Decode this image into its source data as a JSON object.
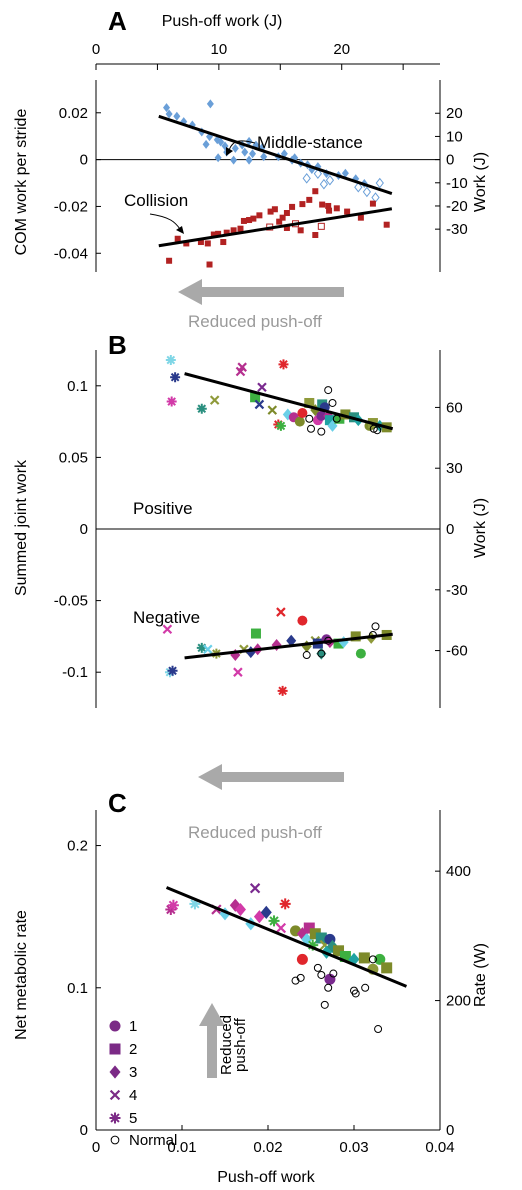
{
  "chart_data": [
    {
      "panel": "A",
      "type": "scatter",
      "xlabel_top": "Push-off work (J)",
      "ylabel": "COM work per stride",
      "ylabel_right": "Work (J)",
      "xlim": [
        0,
        0.04
      ],
      "ylim": [
        -0.048,
        0.034
      ],
      "xticks": [],
      "top_ticks": [
        "0",
        "10",
        "20"
      ],
      "yticks": [
        "0.02",
        "0",
        "-0.02",
        "-0.04"
      ],
      "right_ticks": [
        "20",
        "10",
        "0",
        "-10",
        "-20",
        "-30"
      ],
      "annotations": [
        "Middle-stance",
        "Collision"
      ],
      "arrow_text": "Reduced push-off",
      "series": [
        {
          "name": "Middle-stance",
          "marker": "diamond",
          "color": "#6a9fd8",
          "fit": [
            [
              0.0073,
              0.0185
            ],
            [
              0.0344,
              -0.0145
            ]
          ],
          "points": [
            [
              0.0082,
              0.0222
            ],
            [
              0.0085,
              0.0195
            ],
            [
              0.0094,
              0.0185
            ],
            [
              0.0102,
              0.0162
            ],
            [
              0.0112,
              0.0148
            ],
            [
              0.0123,
              0.0118
            ],
            [
              0.0132,
              0.0098
            ],
            [
              0.0141,
              0.0085
            ],
            [
              0.0128,
              0.0065
            ],
            [
              0.0133,
              0.0238
            ],
            [
              0.0145,
              0.0075
            ],
            [
              0.015,
              0.0058
            ],
            [
              0.0152,
              0.0032
            ],
            [
              0.0162,
              0.0048
            ],
            [
              0.017,
              0.0062
            ],
            [
              0.0178,
              0.0078
            ],
            [
              0.0186,
              0.0062
            ],
            [
              0.0193,
              0.005
            ],
            [
              0.0173,
              0.0032
            ],
            [
              0.0182,
              0.0025
            ],
            [
              0.0142,
              0.0008
            ],
            [
              0.016,
              -0.0002
            ],
            [
              0.0178,
              -0.0002
            ],
            [
              0.0195,
              0.0012
            ],
            [
              0.0212,
              0.0012
            ],
            [
              0.0219,
              0.0025
            ],
            [
              0.0228,
              -0.0002
            ],
            [
              0.0231,
              0.0008
            ],
            [
              0.0238,
              -0.0015
            ],
            [
              0.0246,
              -0.0022
            ],
            [
              0.0251,
              -0.0042
            ],
            [
              0.0258,
              -0.003
            ],
            [
              0.0268,
              -0.006
            ],
            [
              0.0282,
              -0.0068
            ],
            [
              0.029,
              -0.0058
            ],
            [
              0.0302,
              -0.0082
            ],
            [
              0.0312,
              -0.0102
            ],
            [
              0.033,
              -0.01
            ],
            [
              0.0258,
              -0.006
            ],
            [
              0.0245,
              -0.008
            ],
            [
              0.0265,
              -0.0105
            ],
            [
              0.0272,
              -0.0088
            ],
            [
              0.0305,
              -0.0118
            ],
            [
              0.0315,
              -0.0138
            ],
            [
              0.0325,
              -0.0162
            ]
          ]
        },
        {
          "name": "Collision",
          "marker": "square",
          "color": "#b22222",
          "fit": [
            [
              0.0073,
              -0.0368
            ],
            [
              0.0344,
              -0.021
            ]
          ],
          "points": [
            [
              0.0085,
              -0.0432
            ],
            [
              0.0095,
              -0.0338
            ],
            [
              0.0105,
              -0.0358
            ],
            [
              0.0122,
              -0.0352
            ],
            [
              0.013,
              -0.0358
            ],
            [
              0.0137,
              -0.032
            ],
            [
              0.0142,
              -0.0317
            ],
            [
              0.0152,
              -0.0312
            ],
            [
              0.016,
              -0.0302
            ],
            [
              0.0168,
              -0.0295
            ],
            [
              0.0172,
              -0.0262
            ],
            [
              0.0178,
              -0.0258
            ],
            [
              0.0183,
              -0.0252
            ],
            [
              0.019,
              -0.0238
            ],
            [
              0.0203,
              -0.0222
            ],
            [
              0.0208,
              -0.0212
            ],
            [
              0.0217,
              -0.0248
            ],
            [
              0.0222,
              -0.0228
            ],
            [
              0.0228,
              -0.0202
            ],
            [
              0.024,
              -0.019
            ],
            [
              0.0248,
              -0.0172
            ],
            [
              0.0255,
              -0.0135
            ],
            [
              0.0263,
              -0.0192
            ],
            [
              0.0271,
              -0.0218
            ],
            [
              0.028,
              -0.0208
            ],
            [
              0.0292,
              -0.0222
            ],
            [
              0.0308,
              -0.0248
            ],
            [
              0.0322,
              -0.0188
            ],
            [
              0.0338,
              -0.0278
            ],
            [
              0.0132,
              -0.0448
            ],
            [
              0.0202,
              -0.0288
            ],
            [
              0.0213,
              -0.0265
            ],
            [
              0.0222,
              -0.0292
            ],
            [
              0.0232,
              -0.0274
            ],
            [
              0.0238,
              -0.0302
            ],
            [
              0.0255,
              -0.0322
            ],
            [
              0.0262,
              -0.0285
            ],
            [
              0.027,
              -0.0198
            ],
            [
              0.0148,
              -0.0352
            ]
          ]
        }
      ]
    },
    {
      "panel": "B",
      "type": "scatter",
      "ylabel": "Summed joint work",
      "ylabel_right": "Work (J)",
      "xlim": [
        0,
        0.04
      ],
      "ylim": [
        -0.125,
        0.125
      ],
      "yticks": [
        "0.1",
        "0.05",
        "0",
        "-0.05",
        "-0.1"
      ],
      "right_ticks": [
        "60",
        "30",
        "0",
        "-30",
        "-60"
      ],
      "annotations": [
        "Positive",
        "Negative"
      ],
      "arrow_text": "Reduced push-off",
      "fits": [
        [
          [
            0.0103,
            0.1085
          ],
          [
            0.0345,
            0.07
          ]
        ],
        [
          [
            0.0103,
            -0.09
          ],
          [
            0.0345,
            -0.0735
          ]
        ]
      ]
    },
    {
      "panel": "C",
      "type": "scatter",
      "xlabel": "Push-off work",
      "ylabel": "Net metabolic rate",
      "ylabel_right": "Rate (W)",
      "xlim": [
        0,
        0.04
      ],
      "ylim": [
        0,
        0.225
      ],
      "xticks": [
        "0",
        "0.01",
        "0.02",
        "0.03",
        "0.04"
      ],
      "yticks": [
        "0.2",
        "0.1",
        "0"
      ],
      "right_ticks": [
        "400",
        "200",
        "0"
      ],
      "arrow_text": "Reduced push-off",
      "fit": [
        [
          0.0082,
          0.1705
        ],
        [
          0.0361,
          0.101
        ]
      ],
      "legend": [
        {
          "label": "1",
          "marker": "circle",
          "color": "#7b2a86"
        },
        {
          "label": "2",
          "marker": "square",
          "color": "#7b2a86"
        },
        {
          "label": "3",
          "marker": "diamond",
          "color": "#7b2a86"
        },
        {
          "label": "4",
          "marker": "x",
          "color": "#7b2a86"
        },
        {
          "label": "5",
          "marker": "star",
          "color": "#7b2a86"
        },
        {
          "label": "Normal",
          "marker": "open-circle",
          "color": "#000000"
        }
      ]
    }
  ],
  "subjects": [
    {
      "name": "1",
      "marker": "circle"
    },
    {
      "name": "2",
      "marker": "square"
    },
    {
      "name": "3",
      "marker": "diamond"
    },
    {
      "name": "4",
      "marker": "x"
    },
    {
      "name": "5",
      "marker": "star"
    },
    {
      "name": "Normal",
      "marker": "open-circle"
    }
  ],
  "condition_colors": [
    "#7fd6e6",
    "#2a3a8c",
    "#d23aa8",
    "#b52f8f",
    "#7a2a8f",
    "#e0262c",
    "#2a8f7f",
    "#3db040",
    "#1fa3a3",
    "#6ad0e8",
    "#7d8a2a",
    "#8f9a3a"
  ],
  "subject_points": {
    "B_pos": [
      [
        0.0087,
        0.118,
        0,
        4
      ],
      [
        0.0088,
        0.089,
        2,
        4
      ],
      [
        0.0092,
        0.106,
        1,
        4
      ],
      [
        0.0123,
        0.084,
        6,
        4
      ],
      [
        0.0138,
        0.09,
        11,
        3
      ],
      [
        0.0168,
        0.11,
        3,
        3
      ],
      [
        0.017,
        0.113,
        3,
        3
      ],
      [
        0.0185,
        0.092,
        7,
        1
      ],
      [
        0.019,
        0.087,
        1,
        3
      ],
      [
        0.0193,
        0.099,
        4,
        3
      ],
      [
        0.0205,
        0.083,
        10,
        3
      ],
      [
        0.0212,
        0.073,
        5,
        4
      ],
      [
        0.0215,
        0.072,
        7,
        4
      ],
      [
        0.0218,
        0.115,
        5,
        4
      ],
      [
        0.0223,
        0.08,
        9,
        2
      ],
      [
        0.023,
        0.078,
        3,
        0
      ],
      [
        0.0237,
        0.075,
        10,
        0
      ],
      [
        0.024,
        0.081,
        5,
        0
      ],
      [
        0.0248,
        0.088,
        11,
        1
      ],
      [
        0.0255,
        0.083,
        10,
        2
      ],
      [
        0.0258,
        0.076,
        2,
        0
      ],
      [
        0.0262,
        0.079,
        4,
        0
      ],
      [
        0.0263,
        0.087,
        6,
        1
      ],
      [
        0.0266,
        0.085,
        1,
        0
      ],
      [
        0.027,
        0.079,
        3,
        2
      ],
      [
        0.0272,
        0.076,
        8,
        1
      ],
      [
        0.0275,
        0.072,
        9,
        2
      ],
      [
        0.0283,
        0.077,
        7,
        1
      ],
      [
        0.029,
        0.08,
        10,
        1
      ],
      [
        0.03,
        0.078,
        6,
        1
      ],
      [
        0.0305,
        0.076,
        8,
        2
      ],
      [
        0.0318,
        0.072,
        10,
        0
      ],
      [
        0.0322,
        0.074,
        11,
        1
      ],
      [
        0.033,
        0.072,
        8,
        2
      ],
      [
        0.0338,
        0.071,
        10,
        1
      ]
    ],
    "B_pos_normal": [
      [
        0.0248,
        0.077
      ],
      [
        0.025,
        0.07
      ],
      [
        0.0262,
        0.068
      ],
      [
        0.027,
        0.097
      ],
      [
        0.0275,
        0.088
      ],
      [
        0.028,
        0.077
      ],
      [
        0.0323,
        0.07
      ],
      [
        0.0327,
        0.069
      ]
    ],
    "B_neg": [
      [
        0.0083,
        -0.07,
        2,
        3
      ],
      [
        0.0086,
        -0.1,
        0,
        4
      ],
      [
        0.0089,
        -0.099,
        1,
        4
      ],
      [
        0.0123,
        -0.083,
        6,
        4
      ],
      [
        0.013,
        -0.084,
        9,
        3
      ],
      [
        0.014,
        -0.087,
        11,
        4
      ],
      [
        0.0162,
        -0.088,
        3,
        2
      ],
      [
        0.0165,
        -0.1,
        2,
        3
      ],
      [
        0.0172,
        -0.084,
        11,
        3
      ],
      [
        0.018,
        -0.086,
        1,
        2
      ],
      [
        0.0186,
        -0.073,
        7,
        1
      ],
      [
        0.0188,
        -0.084,
        3,
        2
      ],
      [
        0.021,
        -0.081,
        3,
        2
      ],
      [
        0.0215,
        -0.058,
        5,
        3
      ],
      [
        0.0217,
        -0.113,
        5,
        4
      ],
      [
        0.0227,
        -0.078,
        1,
        2
      ],
      [
        0.024,
        -0.064,
        5,
        0
      ],
      [
        0.0245,
        -0.082,
        10,
        2
      ],
      [
        0.0255,
        -0.078,
        11,
        3
      ],
      [
        0.0258,
        -0.08,
        1,
        1
      ],
      [
        0.0262,
        -0.087,
        6,
        2
      ],
      [
        0.0268,
        -0.077,
        4,
        0
      ],
      [
        0.0272,
        -0.079,
        3,
        2
      ],
      [
        0.0282,
        -0.08,
        7,
        1
      ],
      [
        0.0288,
        -0.079,
        9,
        2
      ],
      [
        0.0302,
        -0.075,
        10,
        1
      ],
      [
        0.0308,
        -0.087,
        7,
        0
      ],
      [
        0.032,
        -0.076,
        11,
        2
      ],
      [
        0.0338,
        -0.074,
        10,
        1
      ]
    ],
    "B_neg_normal": [
      [
        0.0245,
        -0.088
      ],
      [
        0.0262,
        -0.087
      ],
      [
        0.027,
        -0.078
      ],
      [
        0.0322,
        -0.074
      ],
      [
        0.0325,
        -0.068
      ]
    ],
    "C": [
      [
        0.0087,
        0.155,
        3,
        4
      ],
      [
        0.009,
        0.158,
        2,
        4
      ],
      [
        0.0115,
        0.159,
        0,
        4
      ],
      [
        0.014,
        0.155,
        3,
        3
      ],
      [
        0.015,
        0.152,
        9,
        2
      ],
      [
        0.0162,
        0.158,
        3,
        2
      ],
      [
        0.0168,
        0.155,
        2,
        2
      ],
      [
        0.018,
        0.145,
        9,
        2
      ],
      [
        0.0185,
        0.17,
        4,
        3
      ],
      [
        0.019,
        0.15,
        2,
        2
      ],
      [
        0.0198,
        0.153,
        1,
        2
      ],
      [
        0.0207,
        0.147,
        7,
        4
      ],
      [
        0.0215,
        0.142,
        2,
        3
      ],
      [
        0.022,
        0.159,
        5,
        4
      ],
      [
        0.0232,
        0.14,
        10,
        0
      ],
      [
        0.024,
        0.138,
        3,
        2
      ],
      [
        0.0245,
        0.134,
        9,
        2
      ],
      [
        0.0248,
        0.142,
        3,
        1
      ],
      [
        0.0252,
        0.13,
        7,
        4
      ],
      [
        0.0255,
        0.138,
        10,
        1
      ],
      [
        0.024,
        0.12,
        5,
        0
      ],
      [
        0.0262,
        0.135,
        6,
        1
      ],
      [
        0.0266,
        0.13,
        11,
        3
      ],
      [
        0.0268,
        0.125,
        8,
        2
      ],
      [
        0.0272,
        0.134,
        1,
        0
      ],
      [
        0.0275,
        0.129,
        6,
        2
      ],
      [
        0.0272,
        0.106,
        4,
        0
      ],
      [
        0.0282,
        0.126,
        10,
        1
      ],
      [
        0.029,
        0.122,
        7,
        1
      ],
      [
        0.03,
        0.12,
        8,
        2
      ],
      [
        0.0312,
        0.121,
        10,
        1
      ],
      [
        0.0322,
        0.113,
        11,
        0
      ],
      [
        0.033,
        0.12,
        7,
        0
      ],
      [
        0.0338,
        0.114,
        10,
        1
      ]
    ],
    "C_normal": [
      [
        0.0232,
        0.105
      ],
      [
        0.0238,
        0.107
      ],
      [
        0.0258,
        0.114
      ],
      [
        0.0262,
        0.109
      ],
      [
        0.0266,
        0.088
      ],
      [
        0.027,
        0.1
      ],
      [
        0.0276,
        0.11
      ],
      [
        0.03,
        0.098
      ],
      [
        0.0302,
        0.096
      ],
      [
        0.0313,
        0.1
      ],
      [
        0.0322,
        0.12
      ],
      [
        0.0328,
        0.071
      ]
    ]
  },
  "labels": {
    "A": "A",
    "B": "B",
    "C": "C",
    "top_axis": "Push-off work (J)",
    "A_ylabel": "COM work per stride",
    "A_ylabel_right": "Work (J)",
    "middle_stance": "Middle-stance",
    "collision": "Collision",
    "reduced_pushoff": "Reduced push-off",
    "B_ylabel": "Summed joint work",
    "B_ylabel_right": "Work (J)",
    "positive": "Positive",
    "negative": "Negative",
    "C_ylabel": "Net metabolic rate",
    "C_ylabel_right": "Rate (W)",
    "C_xlabel": "Push-off work",
    "reduced": "Reduced",
    "push_off": "push-off",
    "legend_1": "1",
    "legend_2": "2",
    "legend_3": "3",
    "legend_4": "4",
    "legend_5": "5",
    "legend_normal": "Normal"
  }
}
